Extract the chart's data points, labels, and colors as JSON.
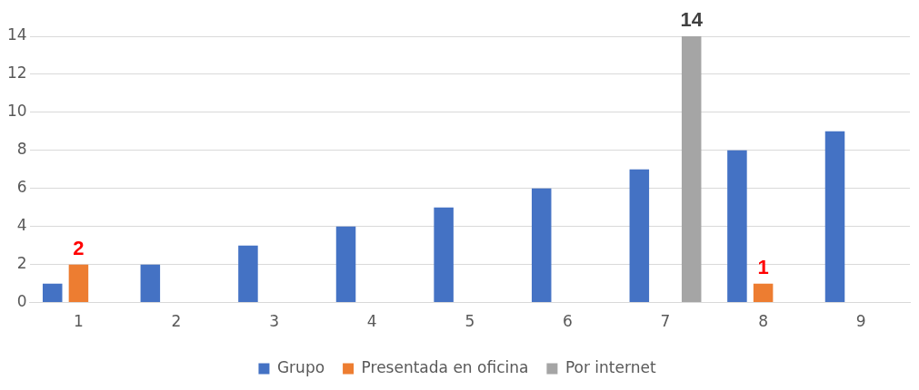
{
  "chart_data": {
    "type": "bar",
    "categories": [
      "1",
      "2",
      "3",
      "4",
      "5",
      "6",
      "7",
      "8",
      "9"
    ],
    "series": [
      {
        "name": "Grupo",
        "color": "#4472c4",
        "values": [
          1,
          2,
          3,
          4,
          5,
          6,
          7,
          8,
          9
        ]
      },
      {
        "name": "Presentada en oficina",
        "color": "#ed7d31",
        "values": [
          2,
          null,
          null,
          null,
          null,
          null,
          null,
          1,
          null
        ],
        "value_labels": [
          "2",
          null,
          null,
          null,
          null,
          null,
          null,
          "1",
          null
        ]
      },
      {
        "name": "Por internet",
        "color": "#a5a5a5",
        "values": [
          null,
          null,
          null,
          null,
          null,
          null,
          14,
          null,
          null
        ],
        "value_labels": [
          null,
          null,
          null,
          null,
          null,
          null,
          "14",
          null,
          null
        ]
      }
    ],
    "ylim": [
      0,
      14
    ],
    "yticks": [
      0,
      2,
      4,
      6,
      8,
      10,
      12,
      14
    ],
    "grid": "y",
    "legend": "bottom"
  }
}
